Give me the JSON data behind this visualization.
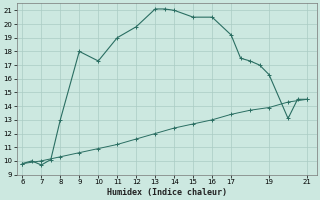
{
  "xlabel": "Humidex (Indice chaleur)",
  "x_main": [
    6,
    6.5,
    7,
    7.5,
    8,
    9,
    10,
    11,
    12,
    13,
    13.5,
    14,
    15,
    16,
    17,
    17.5,
    18,
    18.5,
    19,
    20,
    20.5,
    21
  ],
  "y_main": [
    9.8,
    10.0,
    9.7,
    10.1,
    13.0,
    18.0,
    17.3,
    19.0,
    19.8,
    21.1,
    21.1,
    21.0,
    20.5,
    20.5,
    19.2,
    17.5,
    17.3,
    17.0,
    16.3,
    13.1,
    14.5,
    14.5
  ],
  "x_line2": [
    6,
    7,
    8,
    9,
    10,
    11,
    12,
    13,
    14,
    15,
    16,
    17,
    18,
    19,
    20,
    21
  ],
  "y_line2": [
    9.8,
    10.0,
    10.3,
    10.6,
    10.9,
    11.2,
    11.6,
    12.0,
    12.4,
    12.7,
    13.0,
    13.4,
    13.7,
    13.9,
    14.3,
    14.5
  ],
  "line_color": "#2a6e62",
  "bg_color": "#cce8e0",
  "grid_color": "#aaccc4",
  "xlim": [
    5.7,
    21.5
  ],
  "ylim": [
    9,
    21.5
  ],
  "xticks": [
    6,
    7,
    8,
    9,
    10,
    11,
    12,
    13,
    14,
    15,
    16,
    17,
    19,
    21
  ],
  "yticks": [
    9,
    10,
    11,
    12,
    13,
    14,
    15,
    16,
    17,
    18,
    19,
    20,
    21
  ]
}
